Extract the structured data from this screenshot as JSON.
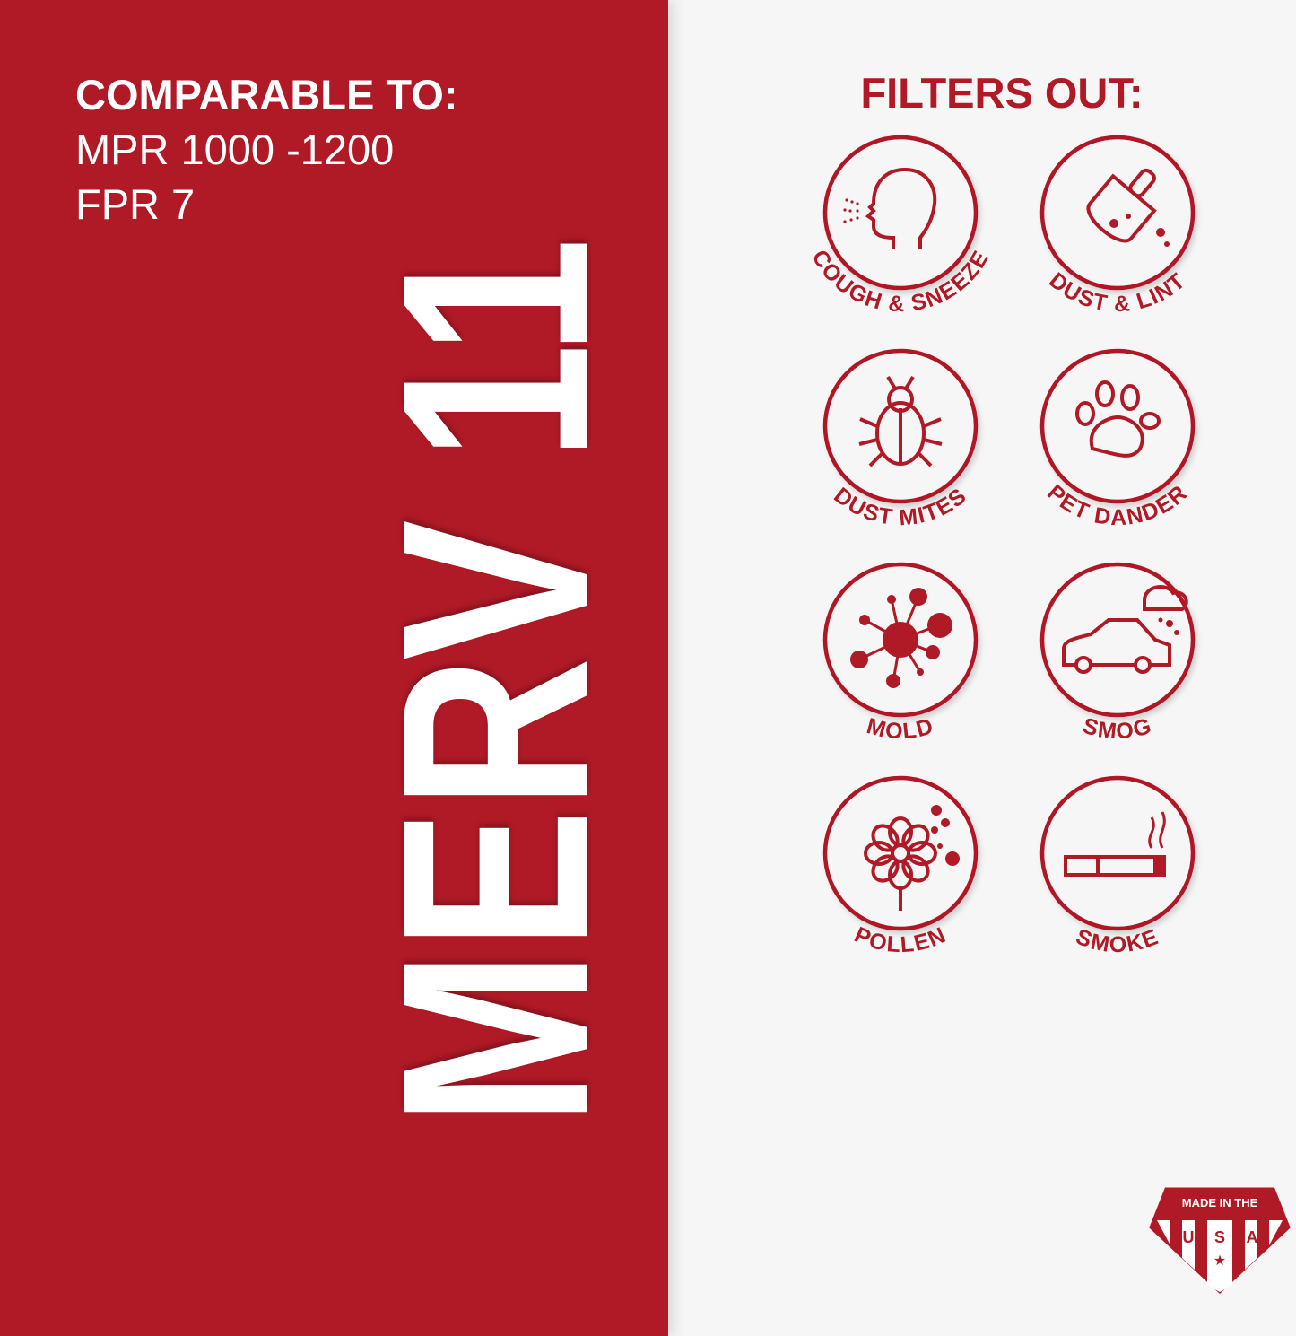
{
  "colors": {
    "brand_red": "#b01926",
    "background": "#f6f6f6",
    "text_light": "#ffffff"
  },
  "comparable": {
    "title": "COMPARABLE TO:",
    "lines": [
      "MPR 1000 -1200",
      "FPR 7"
    ]
  },
  "rating": "MERV 11",
  "filters": {
    "title": "FILTERS OUT:",
    "items": [
      {
        "label": "COUGH & SNEEZE",
        "icon": "head-sneeze-icon"
      },
      {
        "label": "DUST & LINT",
        "icon": "dustpan-icon"
      },
      {
        "label": "DUST MITES",
        "icon": "bug-icon"
      },
      {
        "label": "PET DANDER",
        "icon": "paw-icon"
      },
      {
        "label": "MOLD",
        "icon": "mold-spore-icon"
      },
      {
        "label": "SMOG",
        "icon": "car-smog-icon"
      },
      {
        "label": "POLLEN",
        "icon": "flower-icon"
      },
      {
        "label": "SMOKE",
        "icon": "cigarette-icon"
      }
    ]
  },
  "badge": {
    "text": "MADE IN THE",
    "letters": [
      "U",
      "S",
      "A"
    ],
    "icon": "usa-badge-icon"
  }
}
